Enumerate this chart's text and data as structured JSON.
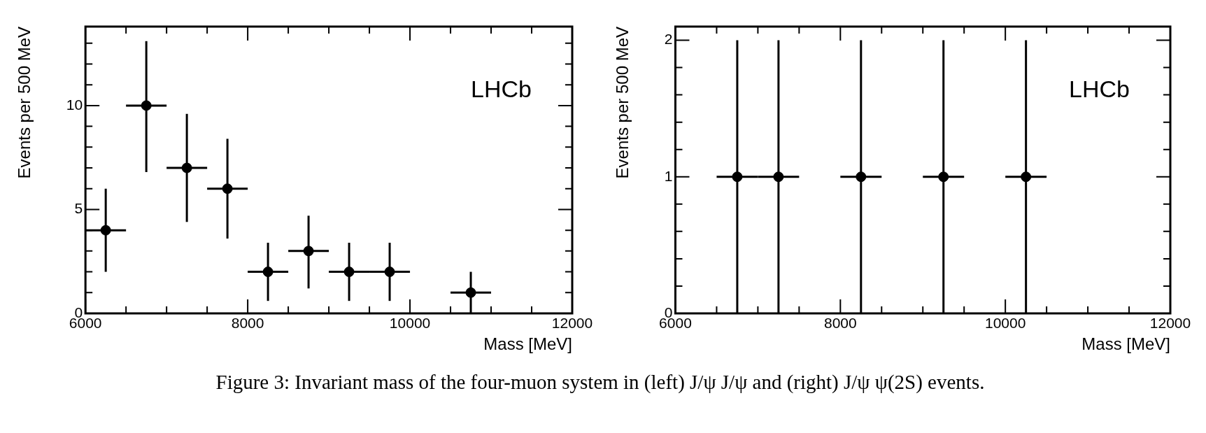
{
  "chart_data": [
    {
      "type": "scatter",
      "xlabel": "Mass [MeV]",
      "ylabel": "Events per 500 MeV",
      "annotations": [
        "LHCb"
      ],
      "marker": "circle",
      "x": [
        6250,
        6750,
        7250,
        7750,
        8250,
        8750,
        9250,
        9750,
        10750
      ],
      "series": [
        {
          "color": "#000000",
          "values": [
            4,
            10,
            7,
            6,
            2,
            3,
            2,
            2,
            1
          ],
          "errors": [
            [
              2,
              6
            ],
            [
              6.8,
              13.1
            ],
            [
              4.4,
              9.6
            ],
            [
              3.6,
              8.4
            ],
            [
              0.6,
              3.4
            ],
            [
              1.2,
              4.7
            ],
            [
              0.6,
              3.4
            ],
            [
              0.6,
              3.4
            ],
            [
              0,
              2
            ]
          ],
          "xerrors": [
            250,
            250,
            250,
            250,
            250,
            250,
            250,
            250,
            250
          ]
        }
      ],
      "xlim": [
        6000,
        12000
      ],
      "xticks": [
        6000,
        {
          "value": 6500,
          "label": null
        },
        {
          "value": 7000,
          "label": null
        },
        {
          "value": 7500,
          "label": null
        },
        8000,
        {
          "value": 8500,
          "label": null
        },
        {
          "value": 9000,
          "label": null
        },
        {
          "value": 9500,
          "label": null
        },
        10000,
        {
          "value": 10500,
          "label": null
        },
        {
          "value": 11000,
          "label": null
        },
        {
          "value": 11500,
          "label": null
        },
        12000
      ],
      "ylim": [
        0,
        13.8
      ],
      "yticks": [
        0,
        {
          "value": 1,
          "label": null
        },
        {
          "value": 2,
          "label": null
        },
        {
          "value": 3,
          "label": null
        },
        {
          "value": 4,
          "label": null
        },
        5,
        {
          "value": 6,
          "label": null
        },
        {
          "value": 7,
          "label": null
        },
        {
          "value": 8,
          "label": null
        },
        {
          "value": 9,
          "label": null
        },
        10,
        {
          "value": 11,
          "label": null
        },
        {
          "value": 12,
          "label": null
        },
        {
          "value": 13,
          "label": null
        }
      ],
      "grid": false,
      "legend": false
    },
    {
      "type": "scatter",
      "xlabel": "Mass [MeV]",
      "ylabel": "Events per 500 MeV",
      "annotations": [
        "LHCb",
        "Figure 3: Invariant mass of the four-muon system in (left) J/ψ J/ψ and (right) J/ψ ψ(2S) events."
      ],
      "marker": "circle",
      "x": [
        6750,
        7250,
        8250,
        9250,
        10250
      ],
      "series": [
        {
          "color": "#000000",
          "values": [
            1,
            1,
            1,
            1,
            1
          ],
          "errors": [
            [
              0,
              2
            ],
            [
              0,
              2
            ],
            [
              0,
              2
            ],
            [
              0,
              2
            ],
            [
              0,
              2
            ]
          ],
          "xerrors": [
            250,
            250,
            250,
            250,
            250
          ]
        }
      ],
      "xlim": [
        6000,
        12000
      ],
      "xticks": [
        6000,
        {
          "value": 6500,
          "label": null
        },
        {
          "value": 7000,
          "label": null
        },
        {
          "value": 7500,
          "label": null
        },
        8000,
        {
          "value": 8500,
          "label": null
        },
        {
          "value": 9000,
          "label": null
        },
        {
          "value": 9500,
          "label": null
        },
        10000,
        {
          "value": 10500,
          "label": null
        },
        {
          "value": 11000,
          "label": null
        },
        {
          "value": 11500,
          "label": null
        },
        12000
      ],
      "ylim": [
        0,
        2.1
      ],
      "yticks": [
        0,
        {
          "value": 0.2,
          "label": null
        },
        {
          "value": 0.4,
          "label": null
        },
        {
          "value": 0.6,
          "label": null
        },
        {
          "value": 0.8,
          "label": null
        },
        1,
        {
          "value": 1.2,
          "label": null
        },
        {
          "value": 1.4,
          "label": null
        },
        {
          "value": 1.6,
          "label": null
        },
        {
          "value": 1.8,
          "label": null
        },
        2
      ],
      "grid": false,
      "legend": false
    }
  ]
}
